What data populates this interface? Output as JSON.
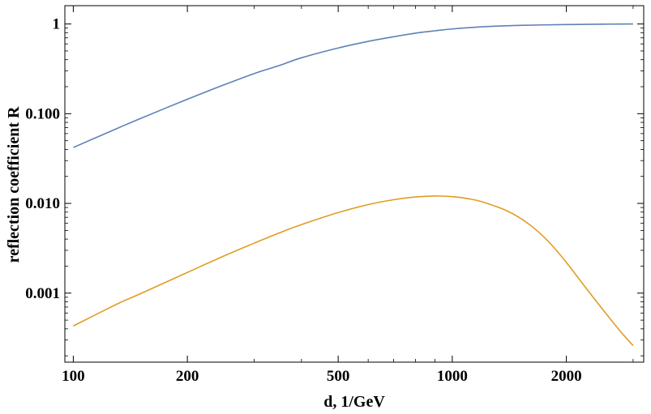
{
  "chart_data": {
    "type": "line",
    "title": "",
    "xlabel": "d, 1/GeV",
    "ylabel": "reflection coefficient R",
    "xscale": "log",
    "yscale": "log",
    "xlim": [
      95,
      3200
    ],
    "ylim": [
      0.00017,
      1.6
    ],
    "x_ticks": [
      {
        "value": 100,
        "label": "100"
      },
      {
        "value": 200,
        "label": "200"
      },
      {
        "value": 500,
        "label": "500"
      },
      {
        "value": 1000,
        "label": "1000"
      },
      {
        "value": 2000,
        "label": "2000"
      }
    ],
    "y_ticks": [
      {
        "value": 0.001,
        "label": "0.001"
      },
      {
        "value": 0.01,
        "label": "0.010"
      },
      {
        "value": 0.1,
        "label": "0.100"
      },
      {
        "value": 1,
        "label": "1"
      }
    ],
    "series": [
      {
        "name": "upper curve",
        "color": "#5e81b5",
        "points": [
          [
            100,
            0.042
          ],
          [
            130,
            0.068
          ],
          [
            150,
            0.088
          ],
          [
            200,
            0.145
          ],
          [
            250,
            0.21
          ],
          [
            300,
            0.28
          ],
          [
            350,
            0.345
          ],
          [
            400,
            0.42
          ],
          [
            500,
            0.54
          ],
          [
            600,
            0.64
          ],
          [
            700,
            0.72
          ],
          [
            800,
            0.79
          ],
          [
            900,
            0.84
          ],
          [
            1000,
            0.88
          ],
          [
            1200,
            0.93
          ],
          [
            1500,
            0.965
          ],
          [
            2000,
            0.985
          ],
          [
            2500,
            0.995
          ],
          [
            3000,
            1.0
          ]
        ]
      },
      {
        "name": "lower curve",
        "color": "#e19c24",
        "points": [
          [
            100,
            0.00043
          ],
          [
            130,
            0.00075
          ],
          [
            150,
            0.00098
          ],
          [
            200,
            0.0017
          ],
          [
            250,
            0.0026
          ],
          [
            300,
            0.0036
          ],
          [
            350,
            0.0047
          ],
          [
            400,
            0.0058
          ],
          [
            500,
            0.0079
          ],
          [
            600,
            0.0097
          ],
          [
            700,
            0.011
          ],
          [
            800,
            0.0118
          ],
          [
            900,
            0.0121
          ],
          [
            1000,
            0.0119
          ],
          [
            1100,
            0.0113
          ],
          [
            1200,
            0.0104
          ],
          [
            1400,
            0.0082
          ],
          [
            1600,
            0.0058
          ],
          [
            1800,
            0.0037
          ],
          [
            2000,
            0.0022
          ],
          [
            2200,
            0.0013
          ],
          [
            2500,
            0.00065
          ],
          [
            2800,
            0.00036
          ],
          [
            3000,
            0.00026
          ]
        ]
      }
    ]
  }
}
